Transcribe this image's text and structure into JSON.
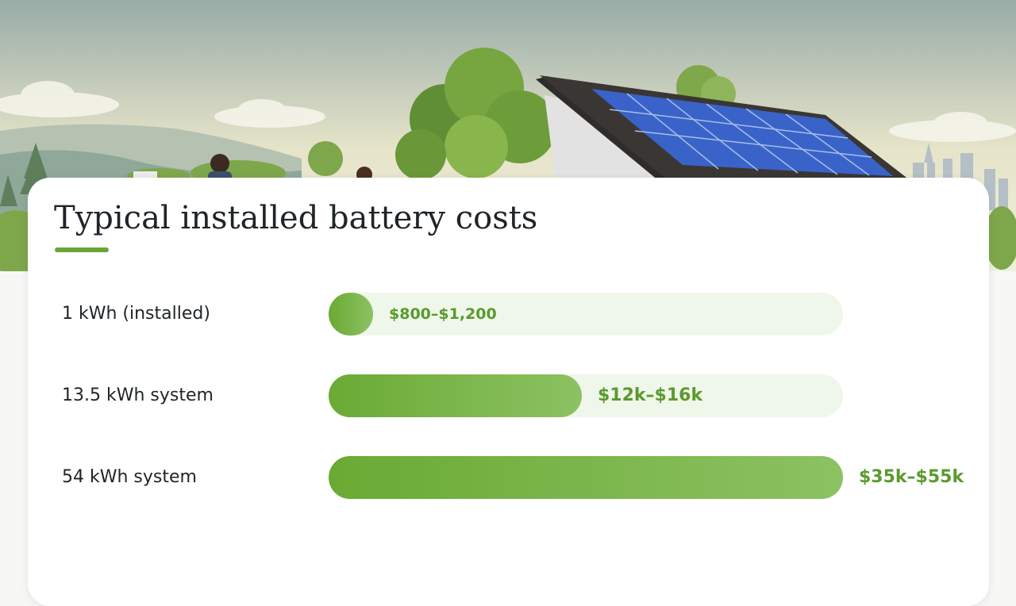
{
  "hero": {
    "colors": {
      "sky_top": "#98aca8",
      "sky_bottom": "#e6e4c9",
      "hills": "#8fa89a",
      "foliage": "#6f9b3e",
      "roof": "#3a3633",
      "panel": "#3a63c9"
    }
  },
  "chart_data": {
    "type": "bar",
    "orientation": "horizontal",
    "title": "Typical installed battery costs",
    "categories": [
      "1 kWh (installed)",
      "13.5 kWh system",
      "54 kWh system"
    ],
    "ranges": [
      [
        800,
        1200
      ],
      [
        12000,
        16000
      ],
      [
        35000,
        55000
      ]
    ],
    "data_labels": [
      "$800–$1,200",
      "$12k–$16k",
      "$35k–$55k"
    ],
    "xlim": [
      0,
      55000
    ],
    "grid": false,
    "legend": "none",
    "colors": {
      "bar_start": "#6aaa34",
      "bar_end": "#8cc262",
      "track": "#eff6ea",
      "value_text": "#5b9a2e",
      "accent_underline": "#6aa636"
    }
  }
}
